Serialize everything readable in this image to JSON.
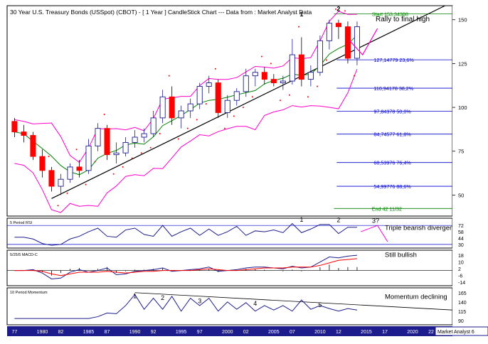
{
  "header": {
    "title": "30 Year U.S. Treasury Bonds (USSpot) (CBOT) -  [ 1 Year ] CandleStick Chart --- Data from : Market Analyst Data"
  },
  "watermark": "Market Analyst 6",
  "colors": {
    "up_candle": "#1c1c8c",
    "down_candle": "#ff0000",
    "bollinger": "#ff00cc",
    "moving_average": "#008000",
    "fib_line": "#0000cc",
    "trendline": "#000000",
    "axis_bg": "#1c1c8c",
    "dots": "#ff0000",
    "rsi_line": "#0000cc",
    "macd_signal": "#ff0000"
  },
  "chart_data": [
    {
      "type": "candlestick",
      "panel": "price",
      "x": [
        1977,
        1978,
        1979,
        1980,
        1981,
        1982,
        1983,
        1984,
        1985,
        1986,
        1987,
        1988,
        1989,
        1990,
        1991,
        1992,
        1993,
        1994,
        1995,
        1996,
        1997,
        1998,
        1999,
        2000,
        2001,
        2002,
        2003,
        2004,
        2005,
        2006,
        2007,
        2008,
        2009,
        2010,
        2011,
        2012,
        2013,
        2014
      ],
      "open": [
        92,
        86,
        84,
        72,
        64,
        55,
        59,
        66,
        64,
        78,
        88,
        73,
        74,
        80,
        83,
        85,
        94,
        106,
        94,
        98,
        102,
        112,
        114,
        97,
        104,
        109,
        118,
        120,
        116,
        114,
        115,
        130,
        116,
        120,
        138,
        148,
        146,
        128
      ],
      "close": [
        86,
        84,
        72,
        64,
        55,
        59,
        66,
        64,
        78,
        88,
        73,
        74,
        80,
        83,
        85,
        94,
        106,
        94,
        98,
        102,
        112,
        114,
        97,
        104,
        109,
        118,
        120,
        116,
        114,
        115,
        130,
        116,
        120,
        138,
        148,
        146,
        128,
        146
      ],
      "high": [
        94,
        90,
        86,
        76,
        66,
        62,
        68,
        70,
        82,
        91,
        90,
        80,
        83,
        87,
        88,
        98,
        110,
        112,
        101,
        105,
        114,
        118,
        116,
        107,
        111,
        122,
        122,
        123,
        119,
        118,
        139,
        140,
        124,
        141,
        150,
        150,
        149,
        149
      ],
      "low": [
        83,
        80,
        70,
        60,
        52,
        50,
        57,
        60,
        62,
        75,
        70,
        68,
        72,
        77,
        80,
        83,
        91,
        90,
        88,
        94,
        99,
        108,
        94,
        94,
        101,
        106,
        112,
        113,
        112,
        110,
        113,
        112,
        112,
        118,
        133,
        139,
        125,
        124
      ],
      "yticks": [
        50,
        75,
        100,
        125,
        150
      ],
      "xlabels": [
        "77",
        "1980",
        "82",
        "1985",
        "87",
        "1990",
        "92",
        "1995",
        "97",
        "2000",
        "02",
        "2005",
        "07",
        "2010",
        "12",
        "2015",
        "17",
        "2020",
        "22",
        "202"
      ],
      "fib_levels": [
        {
          "label": "Start 153,34388",
          "value": 153.34
        },
        {
          "label": "127,14779 23,6%",
          "value": 127.15
        },
        {
          "label": "110,94178 38,2%",
          "value": 110.94
        },
        {
          "label": "97,84378 50,0%",
          "value": 97.84
        },
        {
          "label": "84,74577 61,8%",
          "value": 84.75
        },
        {
          "label": "68,53976 76,4%",
          "value": 68.54
        },
        {
          "label": "54,99776 88,6%",
          "value": 55.0
        },
        {
          "label": "End 42 11/32",
          "value": 42.34
        }
      ],
      "annotations": [
        {
          "label": "1",
          "x": 2008,
          "value": 152
        },
        {
          "label": "2",
          "x": 2012,
          "value": 155
        },
        {
          "label": "Rally to final high",
          "x": 2016,
          "value": 149
        }
      ]
    },
    {
      "type": "line",
      "panel": "rsi",
      "name": "5 Period RSI",
      "yticks": [
        72,
        58,
        44,
        30
      ],
      "values": [
        46,
        46,
        42,
        32,
        28,
        30,
        42,
        48,
        58,
        66,
        48,
        46,
        62,
        66,
        52,
        48,
        72,
        48,
        58,
        66,
        50,
        64,
        50,
        58,
        70,
        50,
        60,
        58,
        62,
        56,
        76,
        56,
        64,
        74,
        74,
        54,
        68,
        68
      ],
      "annotations": [
        {
          "label": "1",
          "x": 2008,
          "value": 80
        },
        {
          "label": "2",
          "x": 2012,
          "value": 79
        },
        {
          "label": "3?",
          "x": 2016,
          "value": 78
        },
        {
          "label": "Triple bearish divergence?",
          "x": 2017,
          "value": 62
        }
      ]
    },
    {
      "type": "line",
      "panel": "macd",
      "name": "5/25/5 MACD-C",
      "yticks": [
        18,
        10,
        2,
        -6,
        -14
      ],
      "macd": [
        0,
        0,
        1,
        -3,
        -10,
        -9,
        -2,
        1,
        -2,
        0,
        3,
        -5,
        -4,
        -1,
        0,
        1,
        3,
        -1,
        0,
        1,
        2,
        4,
        -1,
        0,
        1,
        3,
        4,
        4,
        3,
        2,
        5,
        3,
        4,
        10,
        16,
        15,
        17,
        18
      ],
      "signal": [
        0,
        0,
        0,
        -1,
        -4,
        -6,
        -4,
        -2,
        -2,
        -2,
        -1,
        -2,
        -3,
        -2,
        -1,
        -1,
        0,
        0,
        0,
        0,
        1,
        2,
        1,
        0,
        0,
        1,
        2,
        3,
        3,
        3,
        4,
        4,
        4,
        6,
        9,
        12,
        13,
        14
      ],
      "annotations": [
        {
          "label": "Still bullish",
          "x": 2017,
          "value": 16
        }
      ]
    },
    {
      "type": "line",
      "panel": "momentum",
      "name": "10 Period Momentum",
      "yticks": [
        165,
        140,
        115,
        90
      ],
      "values": [
        95,
        95,
        95,
        95,
        95,
        95,
        95,
        95,
        95,
        100,
        110,
        108,
        130,
        160,
        120,
        150,
        120,
        155,
        115,
        150,
        130,
        150,
        115,
        140,
        120,
        138,
        115,
        130,
        118,
        130,
        115,
        145,
        120,
        130,
        122,
        115,
        122,
        118
      ],
      "annotations": [
        {
          "label": "1",
          "x": 1990,
          "value": 150
        },
        {
          "label": "2",
          "x": 1993,
          "value": 145
        },
        {
          "label": "3",
          "x": 1997,
          "value": 137
        },
        {
          "label": "4",
          "x": 2003,
          "value": 130
        },
        {
          "label": "5",
          "x": 2010,
          "value": 126
        },
        {
          "label": "Momentum declining",
          "x": 2017,
          "value": 148
        }
      ]
    }
  ]
}
